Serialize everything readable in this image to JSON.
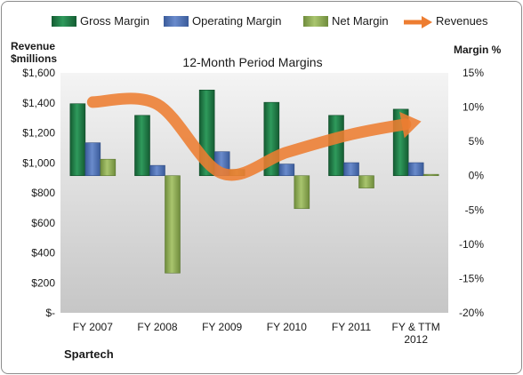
{
  "chart_data": {
    "type": "bar",
    "title": "12-Month Period Margins",
    "categories": [
      "FY 2007",
      "FY 2008",
      "FY 2009",
      "FY 2010",
      "FY 2011",
      "FY & TTM 2012"
    ],
    "series": [
      {
        "name": "Gross Margin",
        "axis": "right",
        "unit": "%",
        "values": [
          10.5,
          8.8,
          12.5,
          10.7,
          8.8,
          9.7
        ],
        "color": "#1f7a45"
      },
      {
        "name": "Operating Margin",
        "axis": "right",
        "unit": "%",
        "values": [
          4.8,
          1.5,
          3.5,
          1.7,
          1.9,
          1.9
        ],
        "color": "#4f72b8"
      },
      {
        "name": "Net Margin",
        "axis": "right",
        "unit": "%",
        "values": [
          2.4,
          -14.2,
          0.9,
          -4.8,
          -1.8,
          0.2
        ],
        "color": "#8faf55"
      },
      {
        "name": "Revenues",
        "axis": "left",
        "type": "line",
        "values": [
          1405,
          1390,
          930,
          1070,
          1190,
          1270
        ],
        "color": "#ed7d31"
      }
    ],
    "left_axis": {
      "label_line1": "Revenue",
      "label_line2": "$millions",
      "range": [
        0,
        1600
      ],
      "ticks": [
        "$1,600",
        "$1,400",
        "$1,200",
        "$1,000",
        "$800",
        "$600",
        "$400",
        "$200",
        "$-"
      ]
    },
    "right_axis": {
      "label": "Margin %",
      "range": [
        -20,
        15
      ],
      "ticks": [
        "15%",
        "10%",
        "5%",
        "0%",
        "-5%",
        "-10%",
        "-15%",
        "-20%"
      ]
    },
    "company": "Spartech",
    "legend_position": "top",
    "grid": false
  }
}
